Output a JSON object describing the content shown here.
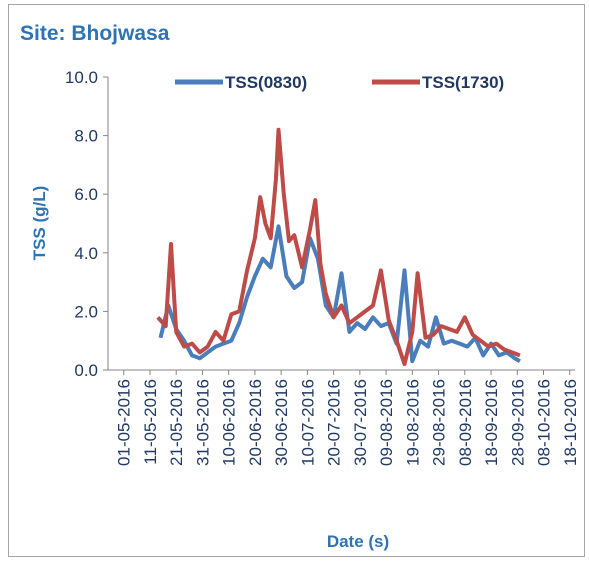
{
  "chart_data": {
    "type": "line",
    "title": "Site: Bhojwasa",
    "y_label": "TSS (g/L)",
    "x_label": "Date (s)",
    "xlim": [
      "25-04-2016",
      "20-10-2016"
    ],
    "xticks": [
      "01-05-2016",
      "11-05-2016",
      "21-05-2016",
      "31-05-2016",
      "10-06-2016",
      "20-06-2016",
      "30-06-2016",
      "10-07-2016",
      "20-07-2016",
      "30-07-2016",
      "09-08-2016",
      "19-08-2016",
      "29-08-2016",
      "08-09-2016",
      "18-09-2016",
      "28-09-2016",
      "08-10-2016",
      "18-10-2016"
    ],
    "ylim": [
      0,
      10
    ],
    "yticks": [
      {
        "value": 0,
        "label": "0.0"
      },
      {
        "value": 2,
        "label": "2.0"
      },
      {
        "value": 4,
        "label": "4.0"
      },
      {
        "value": 6,
        "label": "6.0"
      },
      {
        "value": 8,
        "label": "8.0"
      },
      {
        "value": 10,
        "label": "10.0"
      }
    ],
    "grid": false,
    "legend": "top",
    "series": [
      {
        "name": "TSS(0830)",
        "color": "#4a7ebb",
        "x": [
          "15-05-2016",
          "18-05-2016",
          "21-05-2016",
          "24-05-2016",
          "27-05-2016",
          "30-05-2016",
          "02-06-2016",
          "05-06-2016",
          "08-06-2016",
          "11-06-2016",
          "14-06-2016",
          "17-06-2016",
          "20-06-2016",
          "23-06-2016",
          "26-06-2016",
          "29-06-2016",
          "02-07-2016",
          "05-07-2016",
          "08-07-2016",
          "11-07-2016",
          "14-07-2016",
          "17-07-2016",
          "20-07-2016",
          "23-07-2016",
          "26-07-2016",
          "29-07-2016",
          "01-08-2016",
          "04-08-2016",
          "07-08-2016",
          "10-08-2016",
          "13-08-2016",
          "16-08-2016",
          "19-08-2016",
          "22-08-2016",
          "25-08-2016",
          "28-08-2016",
          "31-08-2016",
          "03-09-2016",
          "06-09-2016",
          "09-09-2016",
          "12-09-2016",
          "15-09-2016",
          "18-09-2016",
          "21-09-2016",
          "24-09-2016",
          "27-09-2016",
          "29-09-2016"
        ],
        "values": [
          1.1,
          2.2,
          1.4,
          1.0,
          0.5,
          0.4,
          0.6,
          0.8,
          0.9,
          1.0,
          1.6,
          2.5,
          3.2,
          3.8,
          3.5,
          4.9,
          3.2,
          2.8,
          3.0,
          4.5,
          3.8,
          2.2,
          1.8,
          3.3,
          1.3,
          1.6,
          1.4,
          1.8,
          1.5,
          1.6,
          0.9,
          3.4,
          0.3,
          1.0,
          0.8,
          1.8,
          0.9,
          1.0,
          0.9,
          0.8,
          1.1,
          0.5,
          0.9,
          0.5,
          0.6,
          0.4,
          0.3
        ]
      },
      {
        "name": "TSS(1730)",
        "color": "#be4b48",
        "x": [
          "14-05-2016",
          "17-05-2016",
          "19-05-2016",
          "21-05-2016",
          "24-05-2016",
          "27-05-2016",
          "30-05-2016",
          "02-06-2016",
          "05-06-2016",
          "08-06-2016",
          "11-06-2016",
          "14-06-2016",
          "17-06-2016",
          "20-06-2016",
          "22-06-2016",
          "24-06-2016",
          "26-06-2016",
          "28-06-2016",
          "29-06-2016",
          "01-07-2016",
          "03-07-2016",
          "05-07-2016",
          "08-07-2016",
          "11-07-2016",
          "13-07-2016",
          "15-07-2016",
          "17-07-2016",
          "20-07-2016",
          "23-07-2016",
          "26-07-2016",
          "29-07-2016",
          "01-08-2016",
          "04-08-2016",
          "07-08-2016",
          "10-08-2016",
          "13-08-2016",
          "16-08-2016",
          "19-08-2016",
          "21-08-2016",
          "24-08-2016",
          "27-08-2016",
          "30-08-2016",
          "02-09-2016",
          "05-09-2016",
          "08-09-2016",
          "11-09-2016",
          "14-09-2016",
          "17-09-2016",
          "20-09-2016",
          "23-09-2016",
          "26-09-2016",
          "29-09-2016"
        ],
        "values": [
          1.8,
          1.5,
          4.3,
          1.3,
          0.8,
          0.9,
          0.6,
          0.8,
          1.3,
          1.0,
          1.9,
          2.0,
          3.4,
          4.5,
          5.9,
          5.0,
          4.5,
          6.5,
          8.2,
          6.0,
          4.4,
          4.6,
          3.5,
          4.8,
          5.8,
          3.6,
          2.6,
          1.8,
          2.2,
          1.6,
          1.8,
          2.0,
          2.2,
          3.4,
          1.7,
          1.0,
          0.2,
          1.3,
          3.3,
          1.1,
          1.2,
          1.5,
          1.4,
          1.3,
          1.8,
          1.2,
          1.0,
          0.8,
          0.9,
          0.7,
          0.6,
          0.5
        ]
      }
    ]
  }
}
